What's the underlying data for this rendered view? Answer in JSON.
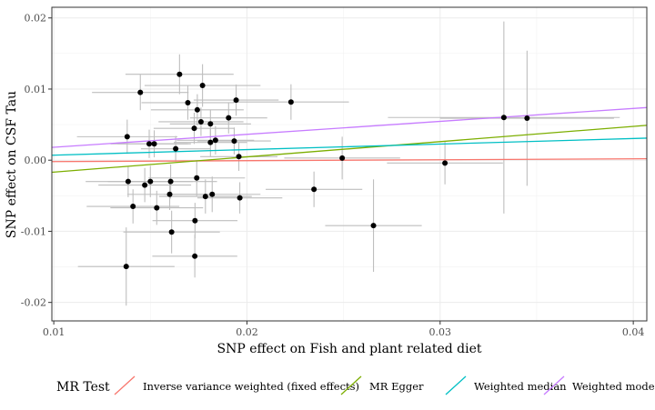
{
  "chart_data": {
    "type": "scatter",
    "title": "",
    "xlabel": "SNP effect on Fish and plant related diet",
    "ylabel": "SNP effect on CSF Tau",
    "xlim": [
      0.0099,
      0.0407
    ],
    "ylim": [
      -0.0226,
      0.0215
    ],
    "x_ticks": [
      0.01,
      0.02,
      0.03,
      0.04
    ],
    "x_tick_labels": [
      "0.01",
      "0.02",
      "0.03",
      "0.04"
    ],
    "y_ticks": [
      -0.02,
      -0.01,
      0.0,
      0.01,
      0.02
    ],
    "y_tick_labels": [
      "-0.02",
      "-0.01",
      "0.00",
      "0.01",
      "0.02"
    ],
    "grid": true,
    "legend": {
      "position": "bottom",
      "title": "MR Test",
      "entries": [
        {
          "name": "Inverse variance weighted (fixed effects)",
          "color": "#F8766D"
        },
        {
          "name": "MR Egger",
          "color": "#7CAE00"
        },
        {
          "name": "Weighted median",
          "color": "#00BFC4"
        },
        {
          "name": "Weighted mode",
          "color": "#C77CFF"
        }
      ]
    },
    "point_color": "#000000",
    "errorbar_color": "#BEBEBE",
    "points": [
      {
        "x": 0.01651,
        "y": 0.01208,
        "xerr": 0.0028,
        "yerr": 0.0028
      },
      {
        "x": 0.0177,
        "y": 0.0105,
        "xerr": 0.003,
        "yerr": 0.003
      },
      {
        "x": 0.01448,
        "y": 0.00953,
        "xerr": 0.0025,
        "yerr": 0.0025
      },
      {
        "x": 0.01694,
        "y": 0.00808,
        "xerr": 0.0024,
        "yerr": 0.0024
      },
      {
        "x": 0.01944,
        "y": 0.00845,
        "xerr": 0.0022,
        "yerr": 0.0022
      },
      {
        "x": 0.02228,
        "y": 0.00818,
        "xerr": 0.003,
        "yerr": 0.0025
      },
      {
        "x": 0.01743,
        "y": 0.00708,
        "xerr": 0.0024,
        "yerr": 0.0022
      },
      {
        "x": 0.01905,
        "y": 0.00595,
        "xerr": 0.002,
        "yerr": 0.0022
      },
      {
        "x": 0.01762,
        "y": 0.0054,
        "xerr": 0.0022,
        "yerr": 0.002
      },
      {
        "x": 0.01811,
        "y": 0.0051,
        "xerr": 0.0021,
        "yerr": 0.002
      },
      {
        "x": 0.01727,
        "y": 0.00448,
        "xerr": 0.0021,
        "yerr": 0.0022
      },
      {
        "x": 0.0138,
        "y": 0.0033,
        "xerr": 0.0026,
        "yerr": 0.0024
      },
      {
        "x": 0.01837,
        "y": 0.0028,
        "xerr": 0.002,
        "yerr": 0.002
      },
      {
        "x": 0.01934,
        "y": 0.0027,
        "xerr": 0.0019,
        "yerr": 0.0019
      },
      {
        "x": 0.01811,
        "y": 0.0025,
        "xerr": 0.0019,
        "yerr": 0.002
      },
      {
        "x": 0.01494,
        "y": 0.0023,
        "xerr": 0.002,
        "yerr": 0.002
      },
      {
        "x": 0.0152,
        "y": 0.0023,
        "xerr": 0.0019,
        "yerr": 0.0019
      },
      {
        "x": 0.01631,
        "y": 0.0016,
        "xerr": 0.0018,
        "yerr": 0.0018
      },
      {
        "x": 0.01958,
        "y": 0.0005,
        "xerr": 0.002,
        "yerr": 0.002
      },
      {
        "x": 0.02493,
        "y": 0.0003,
        "xerr": 0.003,
        "yerr": 0.003
      },
      {
        "x": 0.03025,
        "y": -0.0004,
        "xerr": 0.003,
        "yerr": 0.003
      },
      {
        "x": 0.0333,
        "y": 0.006,
        "xerr": 0.006,
        "yerr": 0.0135
      },
      {
        "x": 0.0345,
        "y": 0.0059,
        "xerr": 0.0045,
        "yerr": 0.0095
      },
      {
        "x": 0.01385,
        "y": -0.003,
        "xerr": 0.0022,
        "yerr": 0.0022
      },
      {
        "x": 0.01471,
        "y": -0.0035,
        "xerr": 0.0024,
        "yerr": 0.0024
      },
      {
        "x": 0.015,
        "y": -0.003,
        "xerr": 0.0022,
        "yerr": 0.0022
      },
      {
        "x": 0.01605,
        "y": -0.003,
        "xerr": 0.0024,
        "yerr": 0.0024
      },
      {
        "x": 0.0174,
        "y": -0.0025,
        "xerr": 0.0025,
        "yerr": 0.0025
      },
      {
        "x": 0.016,
        "y": -0.0048,
        "xerr": 0.0022,
        "yerr": 0.0022
      },
      {
        "x": 0.0182,
        "y": -0.0048,
        "xerr": 0.0025,
        "yerr": 0.0025
      },
      {
        "x": 0.01785,
        "y": -0.0051,
        "xerr": 0.0024,
        "yerr": 0.0024
      },
      {
        "x": 0.01963,
        "y": -0.0053,
        "xerr": 0.0022,
        "yerr": 0.0022
      },
      {
        "x": 0.02347,
        "y": -0.0041,
        "xerr": 0.0025,
        "yerr": 0.0025
      },
      {
        "x": 0.0141,
        "y": -0.0065,
        "xerr": 0.0024,
        "yerr": 0.0024
      },
      {
        "x": 0.01533,
        "y": -0.0067,
        "xerr": 0.0024,
        "yerr": 0.0024
      },
      {
        "x": 0.01731,
        "y": -0.0085,
        "xerr": 0.0022,
        "yerr": 0.0025
      },
      {
        "x": 0.02655,
        "y": -0.0092,
        "xerr": 0.0025,
        "yerr": 0.0065
      },
      {
        "x": 0.0161,
        "y": -0.0101,
        "xerr": 0.0025,
        "yerr": 0.003
      },
      {
        "x": 0.0173,
        "y": -0.0135,
        "xerr": 0.0022,
        "yerr": 0.003
      },
      {
        "x": 0.01375,
        "y": -0.01495,
        "xerr": 0.0025,
        "yerr": 0.0055
      }
    ],
    "lines": [
      {
        "name": "Inverse variance weighted (fixed effects)",
        "color": "#F8766D",
        "x": [
          0.0099,
          0.0407
        ],
        "y": [
          -0.0002,
          0.0002
        ]
      },
      {
        "name": "MR Egger",
        "color": "#7CAE00",
        "x": [
          0.0099,
          0.0407
        ],
        "y": [
          -0.0017,
          0.0049
        ]
      },
      {
        "name": "Weighted median",
        "color": "#00BFC4",
        "x": [
          0.0099,
          0.0407
        ],
        "y": [
          0.0007,
          0.0031
        ]
      },
      {
        "name": "Weighted mode",
        "color": "#C77CFF",
        "x": [
          0.0099,
          0.0407
        ],
        "y": [
          0.0018,
          0.0074
        ]
      }
    ]
  }
}
